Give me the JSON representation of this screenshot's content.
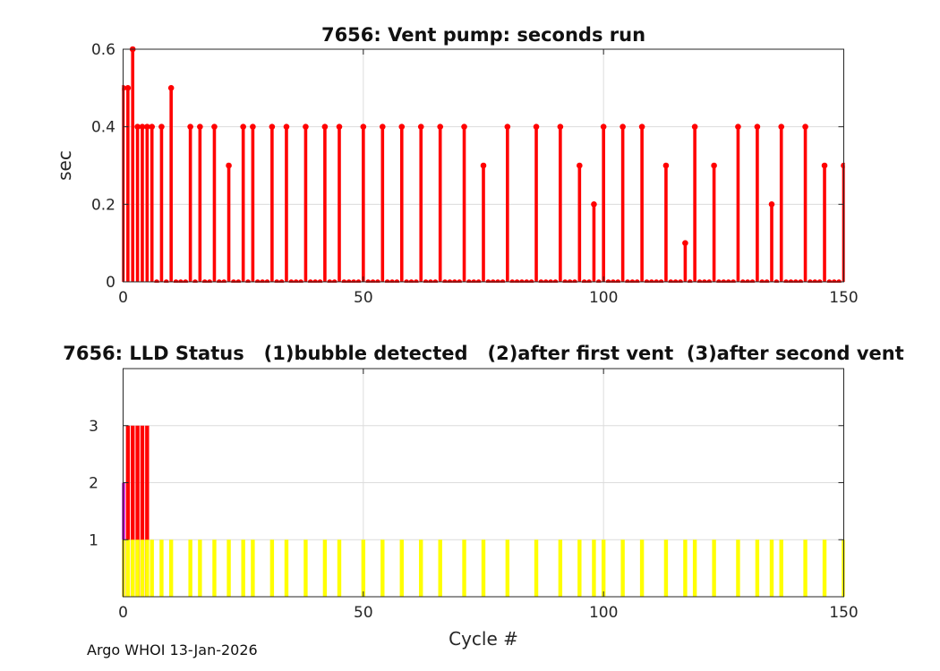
{
  "page": {
    "background": "#ffffff",
    "footer_note": "Argo WHOI 13-Jan-2026"
  },
  "colors": {
    "stem_red": "#ff0000",
    "bar_red": "#ff0000",
    "bar_magenta": "#cc00cc",
    "bar_yellow": "#ffff00",
    "axis": "#262626",
    "grid": "#dcdcdc",
    "tick_text": "#262626"
  },
  "chart_data": [
    {
      "type": "stem",
      "title": "7656: Vent pump: seconds run",
      "ylabel": "sec",
      "series_name": "vent pump seconds run",
      "series_color": "#ff0000",
      "xlim": [
        0,
        150
      ],
      "ylim": [
        0,
        0.6
      ],
      "xticks": [
        0,
        50,
        100,
        150
      ],
      "xtick_labels": [
        "0",
        "50",
        "100",
        "150"
      ],
      "yticks": [
        0,
        0.2,
        0.4,
        0.6
      ],
      "ytick_labels": [
        "0",
        "0.2",
        "0.4",
        "0.6"
      ],
      "grid": true,
      "cycle_range": [
        0,
        150
      ],
      "default_value": 0,
      "seconds_by_cycle": {
        "0": 0.5,
        "1": 0.5,
        "2": 0.6,
        "3": 0.4,
        "4": 0.4,
        "5": 0.4,
        "6": 0.4,
        "8": 0.4,
        "10": 0.5,
        "14": 0.4,
        "16": 0.4,
        "19": 0.4,
        "22": 0.3,
        "25": 0.4,
        "27": 0.4,
        "31": 0.4,
        "34": 0.4,
        "38": 0.4,
        "42": 0.4,
        "45": 0.4,
        "50": 0.4,
        "54": 0.4,
        "58": 0.4,
        "62": 0.4,
        "66": 0.4,
        "71": 0.4,
        "75": 0.3,
        "80": 0.4,
        "86": 0.4,
        "91": 0.4,
        "95": 0.3,
        "98": 0.2,
        "100": 0.4,
        "104": 0.4,
        "108": 0.4,
        "113": 0.3,
        "117": 0.1,
        "119": 0.4,
        "123": 0.3,
        "128": 0.4,
        "132": 0.4,
        "135": 0.2,
        "137": 0.4,
        "142": 0.4,
        "146": 0.3,
        "150": 0.3
      }
    },
    {
      "type": "bar",
      "title": "7656: LLD Status   (1)bubble detected   (2)after first vent  (3)after second vent",
      "xlabel": "Cycle #",
      "xlim": [
        0,
        150
      ],
      "ylim": [
        0,
        4
      ],
      "xticks": [
        0,
        50,
        100,
        150
      ],
      "xtick_labels": [
        "0",
        "50",
        "100",
        "150"
      ],
      "yticks": [
        1,
        2,
        3
      ],
      "ytick_labels": [
        "1",
        "2",
        "3"
      ],
      "grid": true,
      "series": [
        {
          "name": "after second vent",
          "status_value": 3,
          "color": "#ff0000",
          "cycles": [
            1,
            2,
            3,
            4,
            5
          ]
        },
        {
          "name": "after first vent",
          "status_value": 2,
          "color": "#cc00cc",
          "cycles": [
            0
          ]
        },
        {
          "name": "bubble detected",
          "status_value": 1,
          "color": "#ffff00",
          "cycles": [
            0,
            1,
            2,
            3,
            4,
            5,
            6,
            8,
            10,
            14,
            16,
            19,
            22,
            25,
            27,
            31,
            34,
            38,
            42,
            45,
            50,
            54,
            58,
            62,
            66,
            71,
            75,
            80,
            86,
            91,
            95,
            98,
            100,
            104,
            108,
            113,
            117,
            119,
            123,
            128,
            132,
            135,
            137,
            142,
            146,
            150
          ]
        }
      ]
    }
  ]
}
